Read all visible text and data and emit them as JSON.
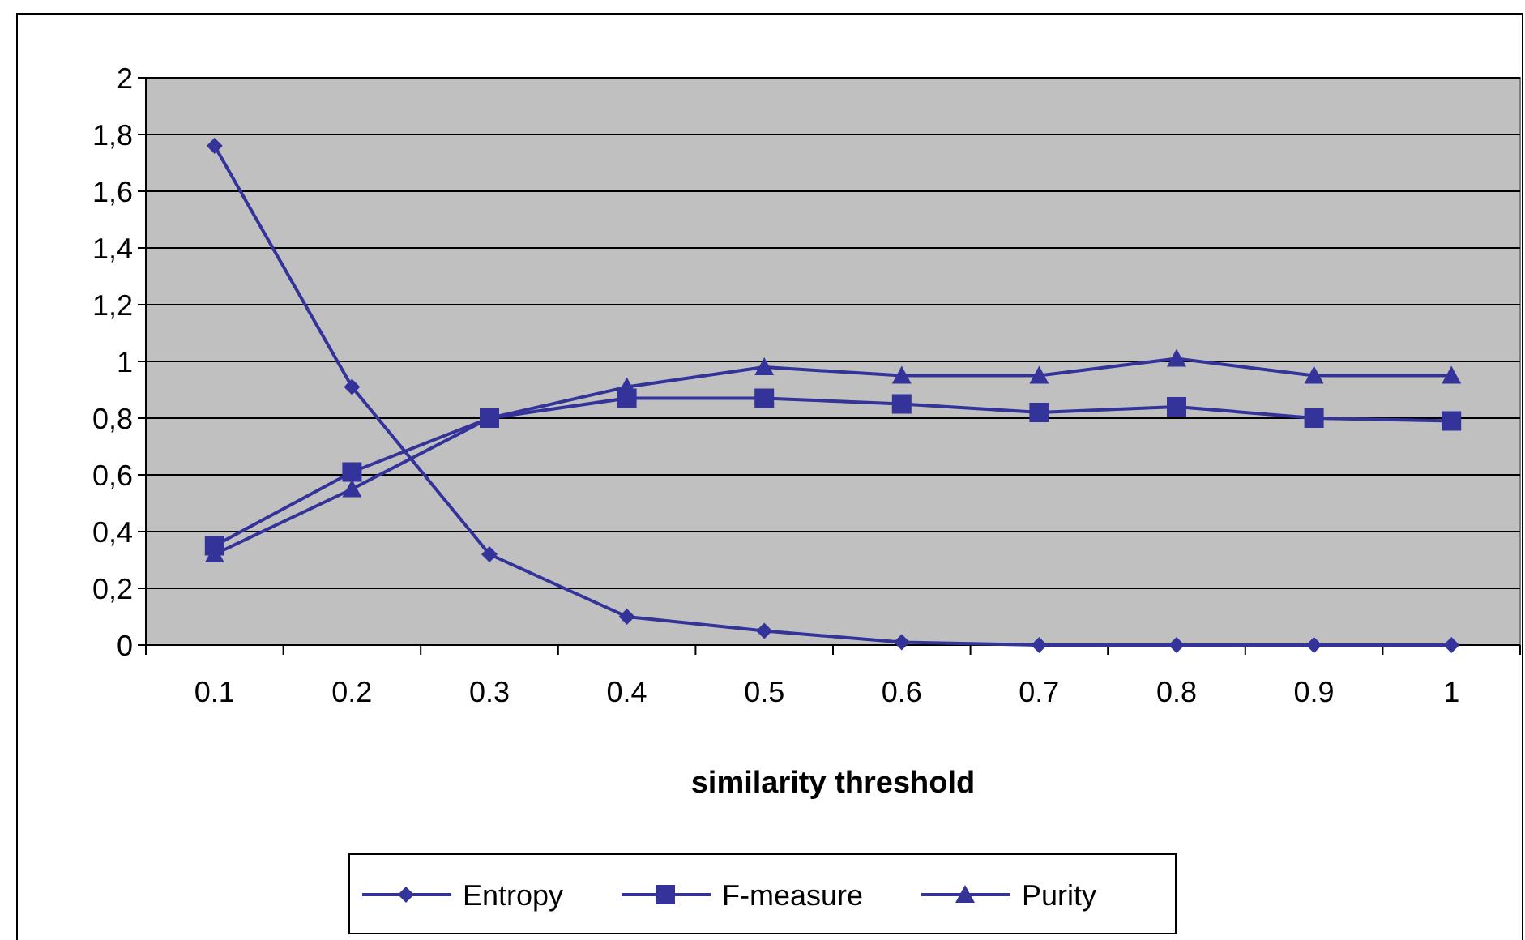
{
  "chart_data": {
    "type": "line",
    "xlabel": "similarity threshold",
    "categories": [
      "0.1",
      "0.2",
      "0.3",
      "0.4",
      "0.5",
      "0.6",
      "0.7",
      "0.8",
      "0.9",
      "1"
    ],
    "ylim": [
      0,
      2
    ],
    "yticks": [
      0,
      {
        "value": 0.2,
        "label": "0,2"
      },
      {
        "value": 0.4,
        "label": "0,4"
      },
      {
        "value": 0.6,
        "label": "0,6"
      },
      {
        "value": 0.8,
        "label": "0,8"
      },
      1,
      {
        "value": 1.2,
        "label": "1,2"
      },
      {
        "value": 1.4,
        "label": "1,4"
      },
      {
        "value": 1.6,
        "label": "1,6"
      },
      {
        "value": 1.8,
        "label": "1,8"
      },
      2
    ],
    "grid": "y",
    "legend": "bottom",
    "series": [
      {
        "name": "Entropy",
        "color": "#333399",
        "marker": "diamond",
        "values": [
          1.76,
          0.91,
          0.32,
          0.1,
          0.05,
          0.01,
          0,
          0,
          0,
          0
        ]
      },
      {
        "name": "F-measure",
        "color": "#333399",
        "marker": "square",
        "values": [
          0.35,
          0.61,
          0.8,
          0.87,
          0.87,
          0.85,
          0.82,
          0.84,
          0.8,
          0.79
        ]
      },
      {
        "name": "Purity",
        "color": "#333399",
        "marker": "triangle",
        "values": [
          0.32,
          0.55,
          0.8,
          0.91,
          0.98,
          0.95,
          0.95,
          1.01,
          0.95,
          0.95
        ]
      }
    ]
  }
}
